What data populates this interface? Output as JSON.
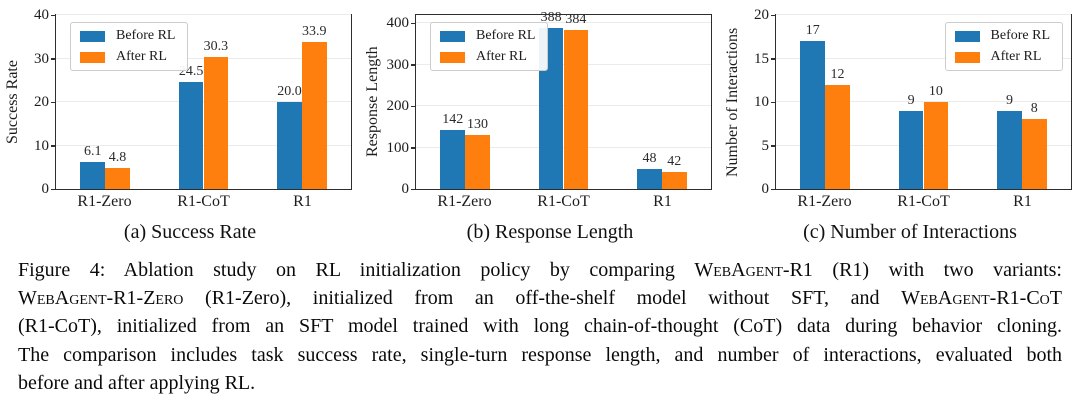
{
  "colors": {
    "before_rl": "#1f77b4",
    "after_rl": "#ff7f0e",
    "grid": "#ebebeb",
    "spine": "#2e2e2e"
  },
  "chart_data": [
    {
      "type": "bar",
      "caption": "(a) Success Rate",
      "ylabel": "Success Rate",
      "xlabel": "",
      "categories": [
        "R1-Zero",
        "R1-CoT",
        "R1"
      ],
      "series": [
        {
          "name": "Before RL",
          "color": "#1f77b4",
          "values": [
            6.1,
            24.5,
            20.0
          ],
          "labels": [
            "6.1",
            "24.5",
            "20.0"
          ]
        },
        {
          "name": "After RL",
          "color": "#ff7f0e",
          "values": [
            4.8,
            30.3,
            33.9
          ],
          "labels": [
            "4.8",
            "30.3",
            "33.9"
          ]
        }
      ],
      "yticks": [
        0,
        10,
        20,
        30,
        40
      ],
      "ylim": [
        0,
        40
      ],
      "grid": true,
      "legend_position": "top-left",
      "bar_width_pct": 8.4
    },
    {
      "type": "bar",
      "caption": "(b) Response Length",
      "ylabel": "Response Length",
      "xlabel": "",
      "categories": [
        "R1-Zero",
        "R1-CoT",
        "R1"
      ],
      "series": [
        {
          "name": "Before RL",
          "color": "#1f77b4",
          "values": [
            142,
            388,
            48
          ],
          "labels": [
            "142",
            "388",
            "48"
          ]
        },
        {
          "name": "After RL",
          "color": "#ff7f0e",
          "values": [
            130,
            384,
            42
          ],
          "labels": [
            "130",
            "384",
            "42"
          ]
        }
      ],
      "yticks": [
        0,
        100,
        200,
        300,
        400
      ],
      "ylim": [
        0,
        420
      ],
      "grid": true,
      "legend_position": "top-left",
      "bar_width_pct": 8.4
    },
    {
      "type": "bar",
      "caption": "(c) Number of Interactions",
      "ylabel": "Number of Interactions",
      "xlabel": "",
      "categories": [
        "R1-Zero",
        "R1-CoT",
        "R1"
      ],
      "series": [
        {
          "name": "Before RL",
          "color": "#1f77b4",
          "values": [
            17,
            9,
            9
          ],
          "labels": [
            "17",
            "9",
            "9"
          ]
        },
        {
          "name": "After RL",
          "color": "#ff7f0e",
          "values": [
            12,
            10,
            8
          ],
          "labels": [
            "12",
            "10",
            "8"
          ]
        }
      ],
      "yticks": [
        0,
        5,
        10,
        15,
        20
      ],
      "ylim": [
        0,
        20
      ],
      "grid": true,
      "legend_position": "top-right",
      "bar_width_pct": 8.4
    }
  ],
  "figure_caption": {
    "lines": [
      {
        "segments": [
          {
            "text": "Figure 4:  Ablation study on RL initialization policy by comparing ",
            "smallcaps": false
          },
          {
            "text": "WebAgent-R1",
            "smallcaps": true
          },
          {
            "text": " (R1) with two variants:",
            "smallcaps": false
          }
        ]
      },
      {
        "segments": [
          {
            "text": "WebAgent-R1-Zero",
            "smallcaps": true
          },
          {
            "text": " (R1-Zero), initialized from an off-the-shelf model without SFT, and ",
            "smallcaps": false
          },
          {
            "text": "WebAgent-R1-CoT",
            "smallcaps": true
          }
        ]
      },
      {
        "segments": [
          {
            "text": "(R1-CoT), initialized from an SFT model trained with long chain-of-thought (CoT) data during behavior cloning.",
            "smallcaps": false
          }
        ]
      },
      {
        "segments": [
          {
            "text": "The comparison includes task success rate, single-turn response length, and number of interactions, evaluated both",
            "smallcaps": false
          }
        ]
      },
      {
        "segments": [
          {
            "text": "before and after applying RL.",
            "smallcaps": false
          }
        ]
      }
    ]
  }
}
